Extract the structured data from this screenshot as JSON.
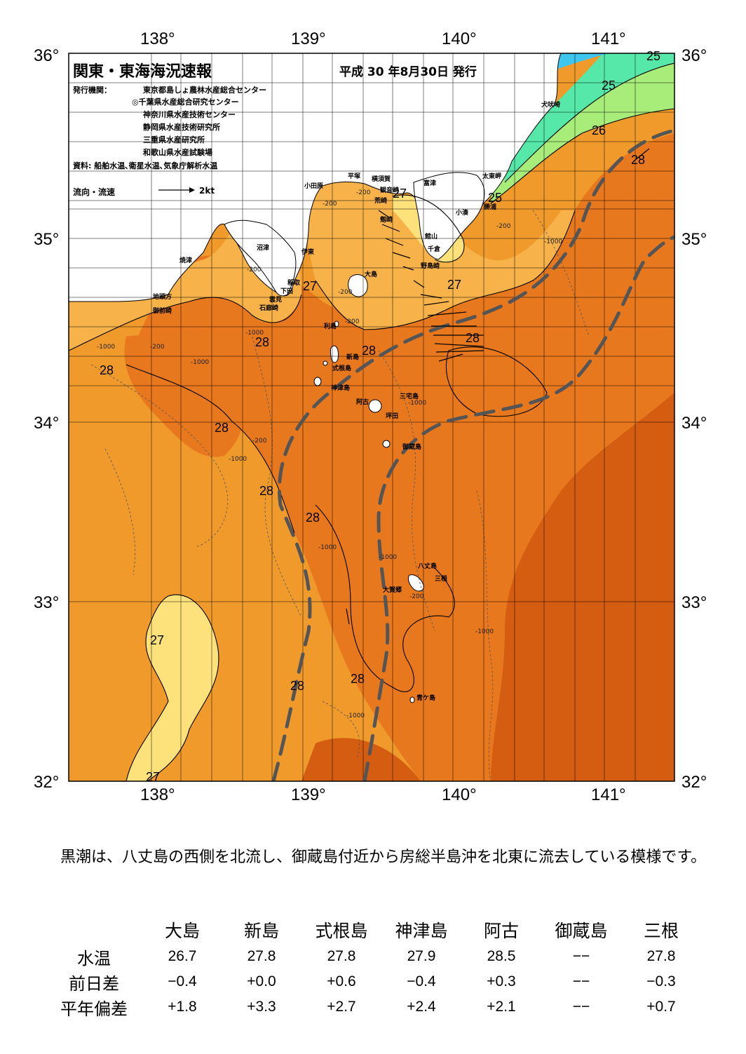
{
  "header": {
    "title": "関東・東海海況速報",
    "issued": "平成 30 年8月30日 発行",
    "agency_label": "発行機関：",
    "agencies": [
      "東京都島しょ農林水産総合センター",
      "◎千葉県水産総合研究センター",
      "神奈川県水産技術センター",
      "静岡県水産技術研究所",
      "三重県水産研究所",
      "和歌山県水産試験場"
    ],
    "sources": "資料: 船舶水温､衛星水温､気象庁解析水温",
    "legend_label": "流向・流速",
    "legend_scale": "2kt"
  },
  "axes": {
    "lon_labels": [
      "138°",
      "139°",
      "140°",
      "141°"
    ],
    "lat_labels": [
      "36°",
      "35°",
      "34°",
      "33°",
      "32°"
    ]
  },
  "map": {
    "contour_labels": [
      "25",
      "25",
      "26",
      "25",
      "28",
      "27",
      "27",
      "27",
      "28",
      "28",
      "28",
      "28",
      "28",
      "28",
      "28",
      "27",
      "27",
      "28",
      "28"
    ],
    "places": [
      "小田原",
      "平塚",
      "横須賀",
      "観音崎",
      "荒崎",
      "富津",
      "剱崎",
      "館山",
      "千倉",
      "野島崎",
      "小湊",
      "勝浦",
      "太東岬",
      "犬吠埼",
      "沼津",
      "伊東",
      "焼津",
      "稲取",
      "下田",
      "雲見",
      "石廊崎",
      "地頭方",
      "御前崎",
      "大島",
      "利島",
      "新島",
      "式根島",
      "神津島",
      "三宅島",
      "阿古",
      "坪田",
      "御蔵島",
      "八丈島",
      "三根",
      "大賀郷",
      "青ケ島"
    ],
    "depth_labels": [
      "-200",
      "-200",
      "-1000",
      "-200",
      "-200",
      "-1000",
      "-1000",
      "-200",
      "-1000",
      "-200",
      "-1000",
      "-1000",
      "-1000",
      "-200",
      "-200",
      "-1000",
      "-1000",
      "-1000",
      "-200"
    ],
    "colors": {
      "t24": "#3ec6ee",
      "t25": "#56e8a8",
      "t26": "#a8ec7a",
      "t27": "#fde17a",
      "t27_5": "#f7b24a",
      "t28": "#f09a2c",
      "t28_5": "#e8781e",
      "t29": "#d45d12",
      "kuroshio": "#555555"
    }
  },
  "note": "　黒潮は、八丈島の西側を北流し、御蔵島付近から房総半島沖を北東に流去している模様です。",
  "table": {
    "columns": [
      "大島",
      "新島",
      "式根島",
      "神津島",
      "阿古",
      "御蔵島",
      "三根"
    ],
    "rows": [
      {
        "label": "水温",
        "values": [
          "26.7",
          "27.8",
          "27.8",
          "27.9",
          "28.5",
          "−−",
          "27.8"
        ]
      },
      {
        "label": "前日差",
        "values": [
          "−0.4",
          "+0.0",
          "+0.6",
          "−0.4",
          "+0.3",
          "−−",
          "−0.3"
        ]
      },
      {
        "label": "平年偏差",
        "values": [
          "+1.8",
          "+3.3",
          "+2.7",
          "+2.4",
          "+2.1",
          "−−",
          "+0.7"
        ]
      }
    ]
  }
}
